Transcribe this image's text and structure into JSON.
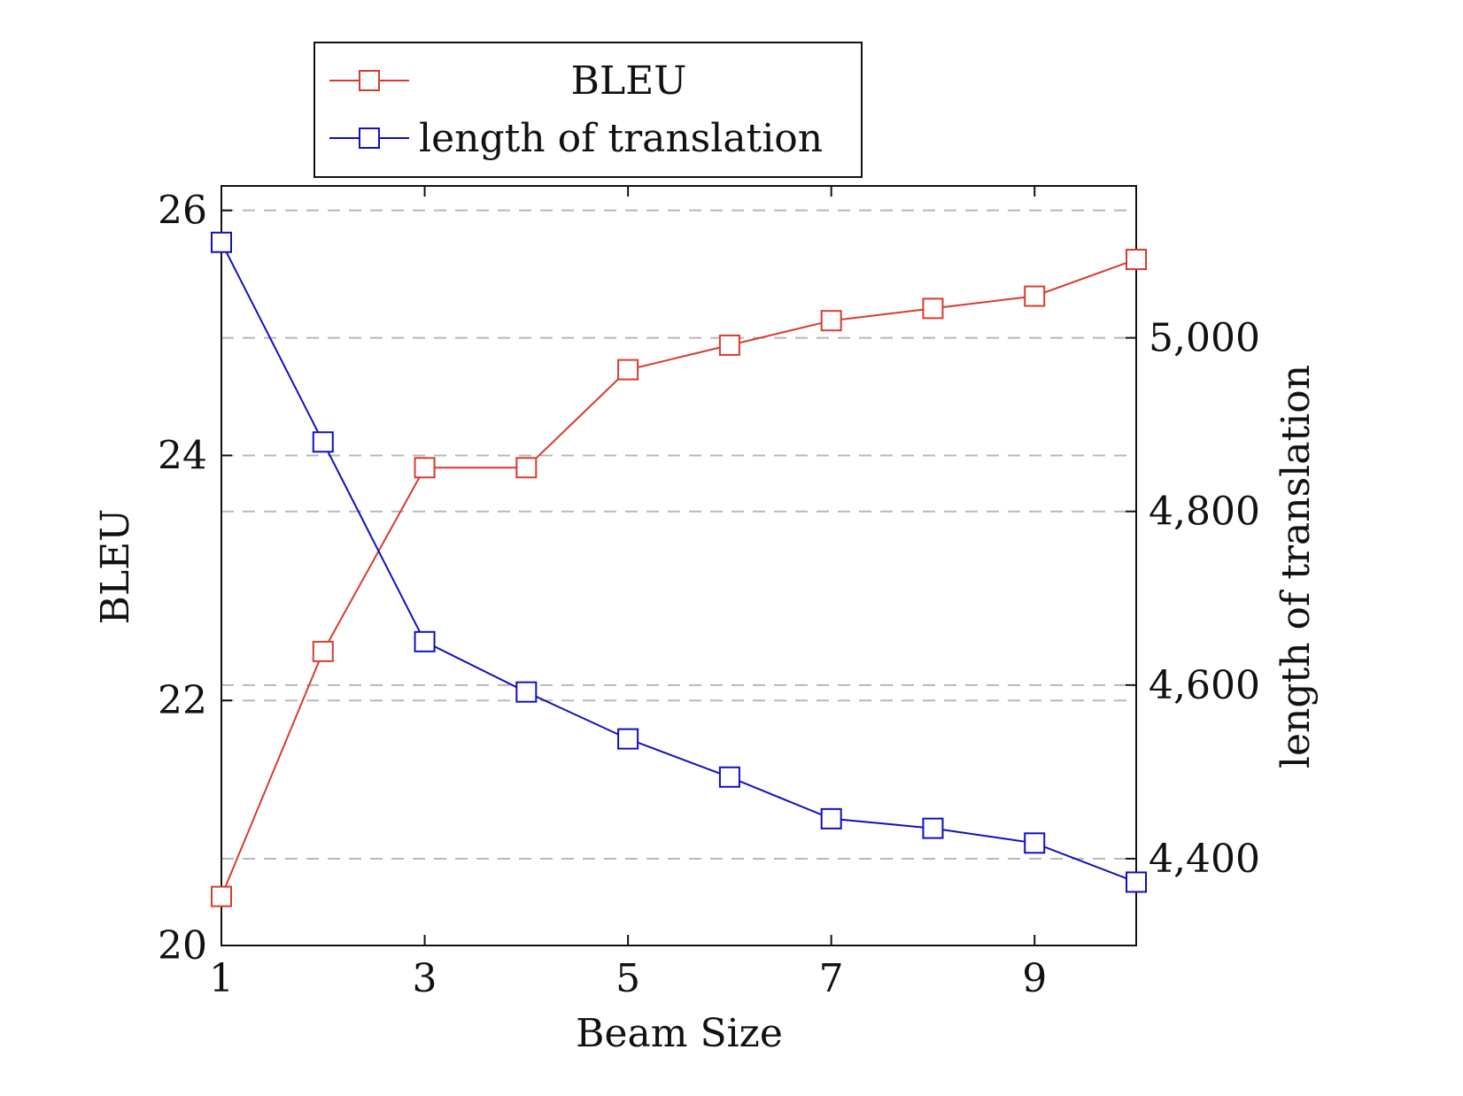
{
  "chart_data": {
    "type": "line",
    "x": [
      1,
      2,
      3,
      4,
      5,
      6,
      7,
      8,
      9,
      10
    ],
    "xlabel": "Beam Size",
    "xticks": [
      1,
      3,
      5,
      7,
      9
    ],
    "xlim": [
      1,
      10
    ],
    "y_left": {
      "label": "BLEU",
      "lim": [
        20,
        26.2
      ],
      "ticks": [
        20,
        22,
        24,
        26
      ],
      "tick_labels": [
        "20",
        "22",
        "24",
        "26"
      ]
    },
    "y_right": {
      "label": "length of translation",
      "lim": [
        4300,
        5175
      ],
      "ticks": [
        4400,
        4600,
        4800,
        5000
      ],
      "tick_labels": [
        "4,400",
        "4,600",
        "4,800",
        "5,000"
      ]
    },
    "series": [
      {
        "name": "BLEU",
        "axis": "left",
        "color": "#d83b2e",
        "marker": "square",
        "values": [
          20.4,
          22.4,
          23.9,
          23.9,
          24.7,
          24.9,
          25.1,
          25.2,
          25.3,
          25.6
        ]
      },
      {
        "name": "length of translation",
        "axis": "right",
        "color": "#1010c0",
        "marker": "square",
        "values": [
          5110,
          4880,
          4650,
          4592,
          4538,
          4494,
          4446,
          4435,
          4418,
          4373
        ]
      }
    ],
    "grid": "dashed-horizontal",
    "legend_position": "top-center-outside"
  }
}
